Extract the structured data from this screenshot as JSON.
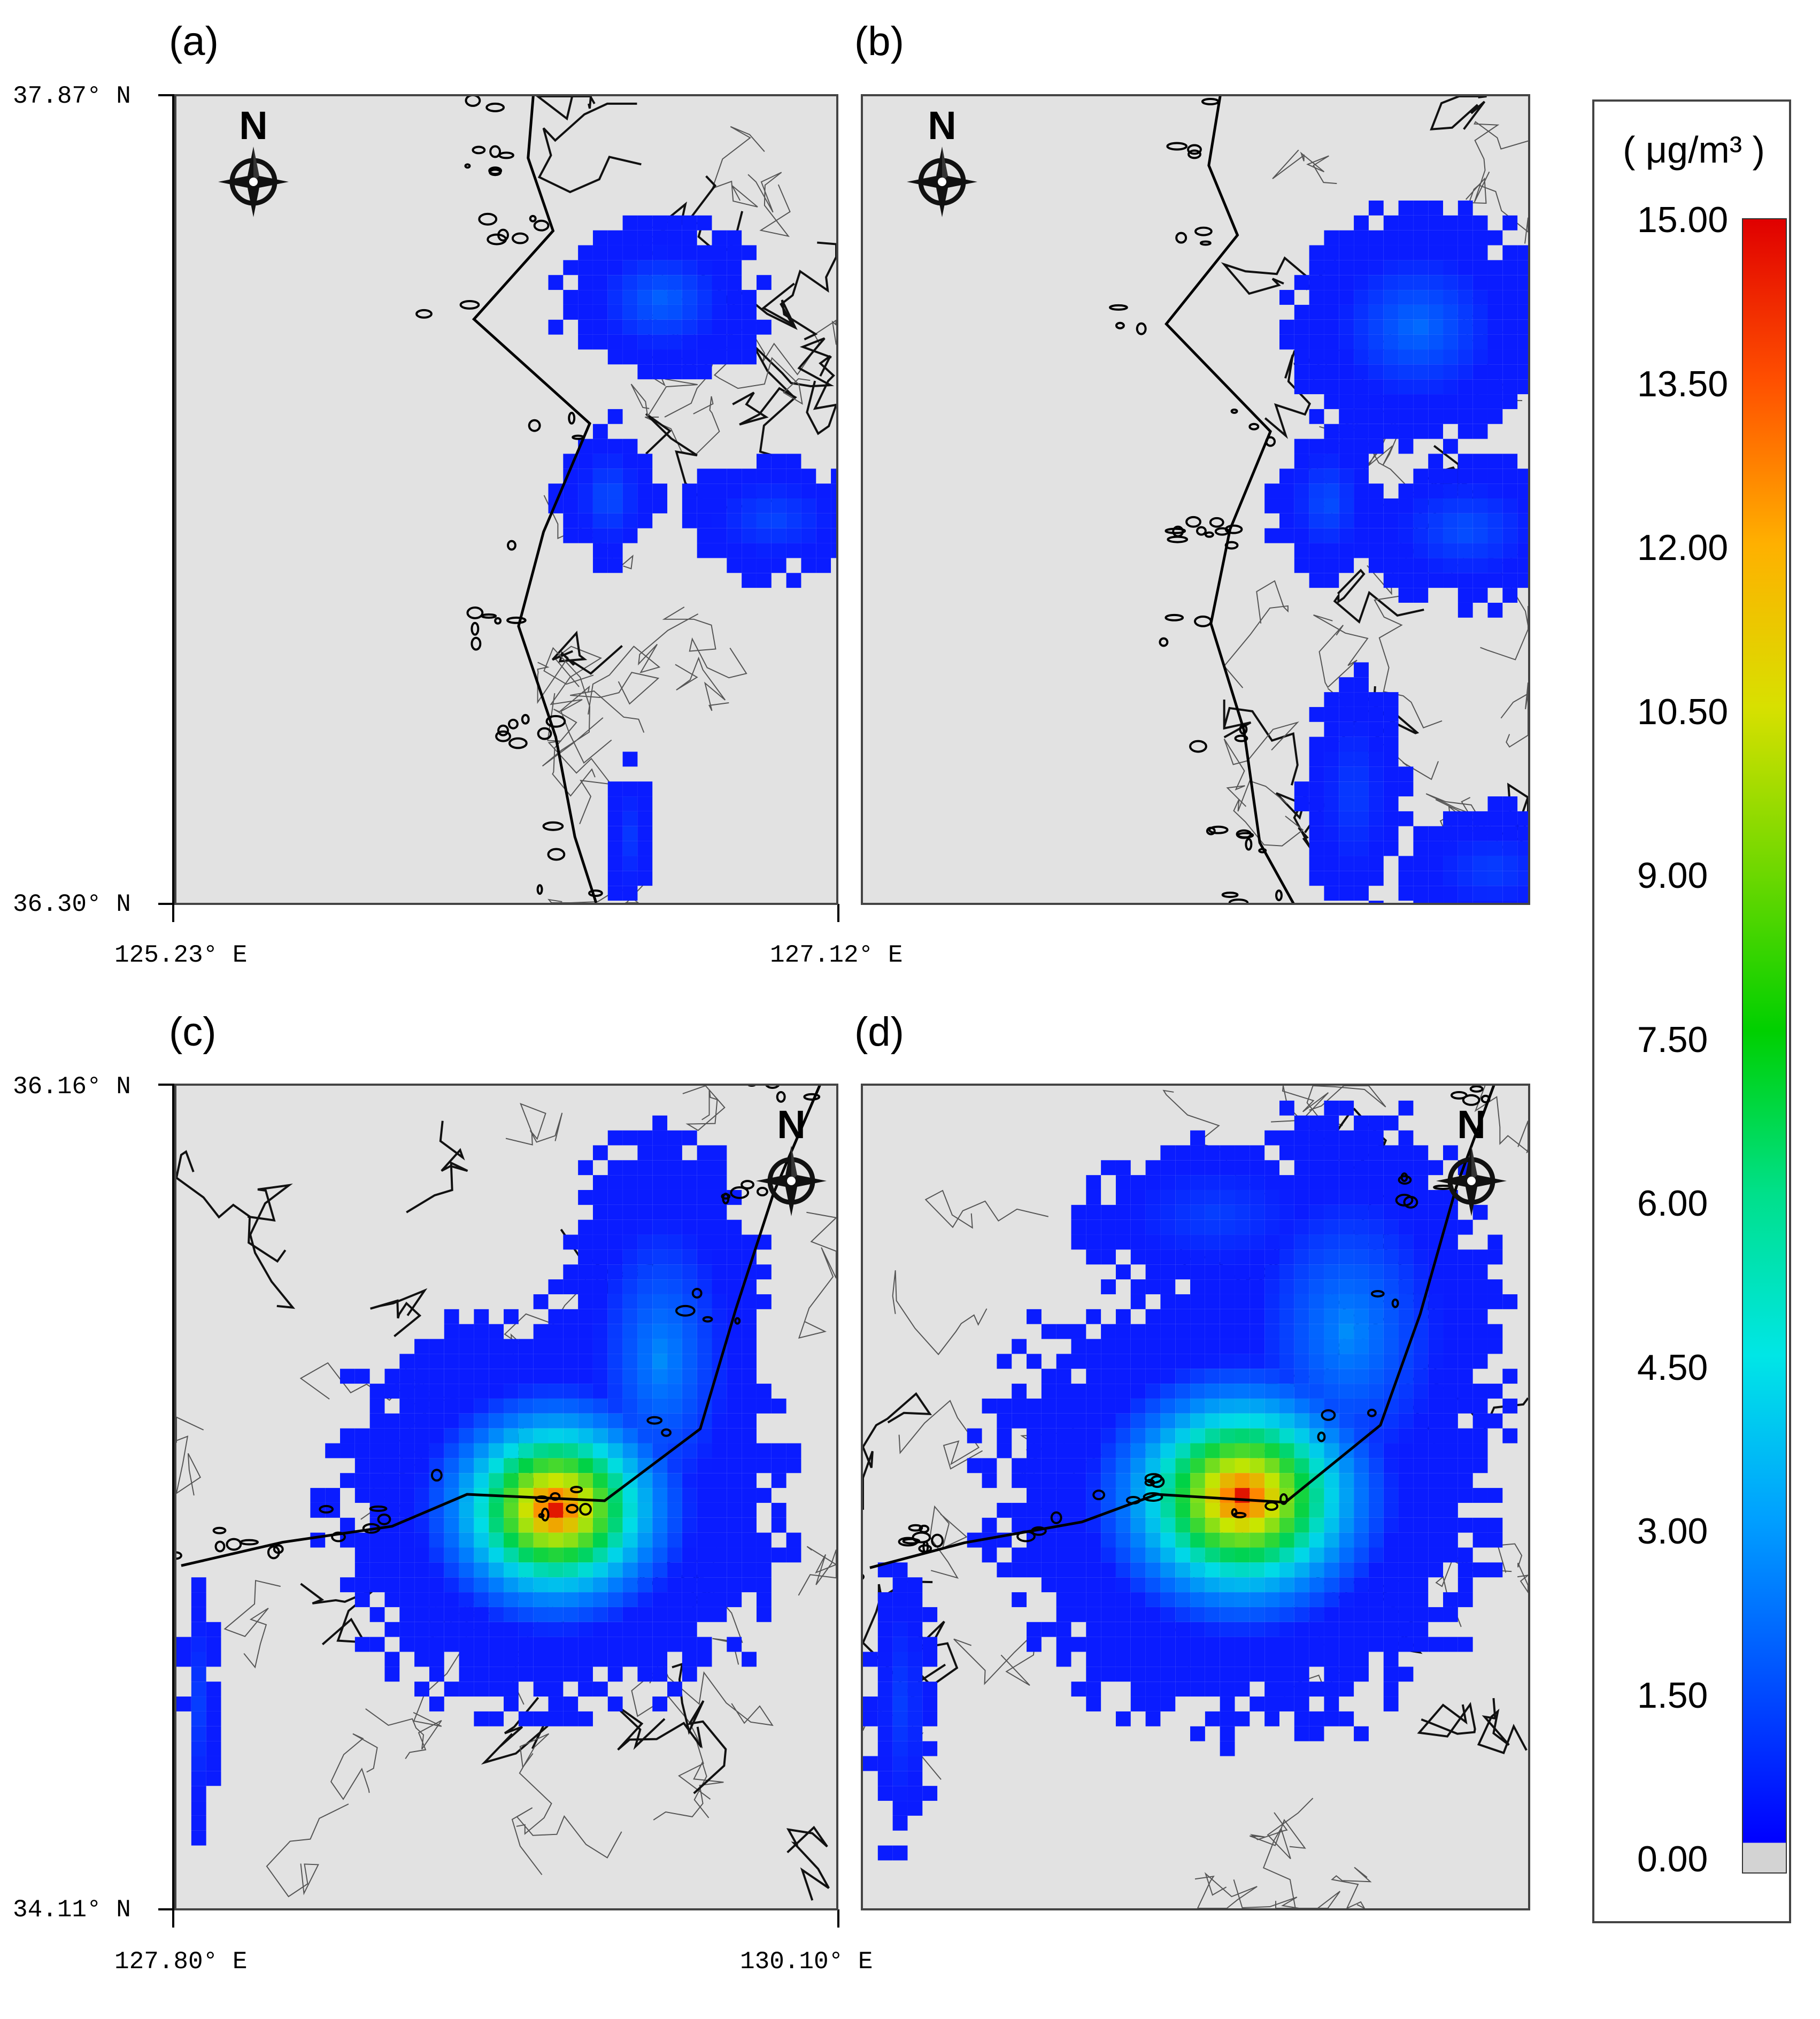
{
  "panels": [
    {
      "label": "(a)"
    },
    {
      "label": "(b)"
    },
    {
      "label": "(c)"
    },
    {
      "label": "(d)"
    }
  ],
  "top_row": {
    "lat_top": "37.87° N",
    "lat_bottom": "36.30° N",
    "lon_left": "125.23° E",
    "lon_right": "127.12° E"
  },
  "bottom_row": {
    "lat_top": "36.16° N",
    "lat_bottom": "34.11° N",
    "lon_left": "127.80° E",
    "lon_right": "130.10° E"
  },
  "north_arrow": {
    "letter": "N",
    "icon": "compass-rose-icon"
  },
  "legend": {
    "unit": "( μg/m³ )",
    "ticks": [
      "15.00",
      "13.50",
      "12.00",
      "10.50",
      "9.00",
      "7.50",
      "6.00",
      "4.50",
      "3.00",
      "1.50",
      "0.00"
    ],
    "min": 0,
    "max": 15,
    "zero_color": "#d3d3d3",
    "colors": [
      "#0000ff",
      "#0050ff",
      "#00a0ff",
      "#00e6e6",
      "#00e08a",
      "#00d000",
      "#70d800",
      "#d8e000",
      "#ffb000",
      "#ff5000",
      "#e00000"
    ]
  },
  "colors": {
    "map_background": "#e2e2e2",
    "low_concentration": "#0a1cff"
  }
}
